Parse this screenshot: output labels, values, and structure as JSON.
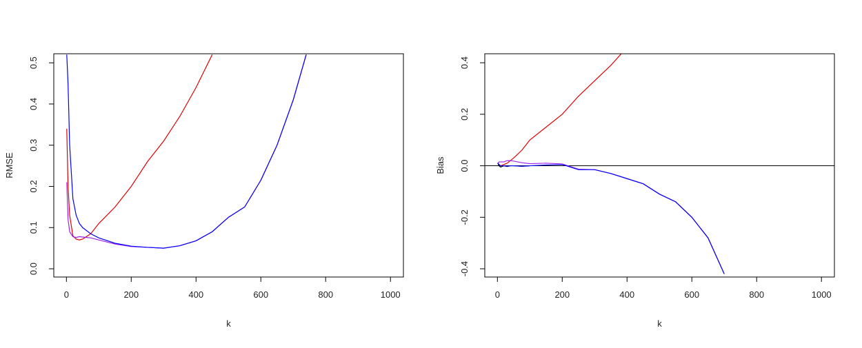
{
  "chart_data": [
    {
      "type": "line",
      "xlabel": "k",
      "ylabel": "RMSE",
      "x": [
        1,
        5,
        10,
        20,
        30,
        40,
        50,
        75,
        100,
        150,
        200,
        250,
        300,
        350,
        400,
        450,
        500,
        550,
        600,
        650,
        700,
        740
      ],
      "xlim": [
        -39,
        1040
      ],
      "xticks": [
        0,
        200,
        400,
        600,
        800,
        1000
      ],
      "ylim": [
        -0.02,
        0.522
      ],
      "yticks": [
        {
          "value": 0,
          "label": "0.0"
        },
        0.1,
        0.2,
        0.3,
        0.4,
        0.5
      ],
      "series": [
        {
          "color": "#e00000",
          "values": [
            0.34,
            0.2,
            0.13,
            0.08,
            0.072,
            0.07,
            0.072,
            0.085,
            0.11,
            0.15,
            0.2,
            0.26,
            0.31,
            0.37,
            0.44,
            0.52,
            null,
            null,
            null,
            null,
            null,
            null
          ]
        },
        {
          "color": "#a020f0",
          "values": [
            0.21,
            0.12,
            0.09,
            0.078,
            0.076,
            0.078,
            0.077,
            0.075,
            0.07,
            0.06,
            0.054,
            0.052,
            0.05,
            0.056,
            0.068,
            0.09,
            0.125,
            0.15,
            0.215,
            0.3,
            0.41,
            0.52
          ]
        },
        {
          "color": "#0000ff",
          "values": [
            0.52,
            0.45,
            0.3,
            0.17,
            0.13,
            0.11,
            0.1,
            0.085,
            0.075,
            0.062,
            0.055,
            0.052,
            0.05,
            0.056,
            0.068,
            0.09,
            0.125,
            0.15,
            0.215,
            0.3,
            0.41,
            0.52
          ]
        }
      ]
    },
    {
      "type": "line",
      "xlabel": "k",
      "ylabel": "Bias",
      "x": [
        1,
        5,
        10,
        20,
        30,
        40,
        50,
        75,
        100,
        150,
        200,
        250,
        300,
        350,
        400,
        450,
        500,
        550,
        600,
        650,
        700
      ],
      "xlim": [
        -39,
        1040
      ],
      "xticks": [
        0,
        200,
        400,
        600,
        800,
        1000
      ],
      "ylim": [
        -0.432,
        0.435
      ],
      "yticks": [
        -0.4,
        -0.2,
        {
          "value": 0,
          "label": "0.0"
        },
        0.2,
        0.4
      ],
      "hline": 0,
      "series": [
        {
          "color": "#e00000",
          "values": [
            0.01,
            0.005,
            0.0,
            0.005,
            0.01,
            0.02,
            0.03,
            0.06,
            0.1,
            0.15,
            0.2,
            0.27,
            0.33,
            0.39,
            0.46,
            null,
            null,
            null,
            null,
            null,
            null
          ]
        },
        {
          "color": "#000000",
          "values": [
            0.01,
            0.0,
            -0.005,
            0.0,
            -0.003,
            0.0,
            0.0,
            -0.002,
            0.0,
            null,
            null,
            null,
            null,
            null,
            null,
            null,
            null,
            null,
            null,
            null,
            null
          ]
        },
        {
          "color": "#a020f0",
          "values": [
            0.01,
            0.015,
            0.015,
            0.015,
            0.02,
            0.02,
            0.018,
            0.012,
            0.008,
            0.01,
            0.007,
            -0.013,
            -0.015,
            -0.03,
            -0.05,
            -0.07,
            -0.11,
            -0.14,
            -0.2,
            -0.28,
            -0.42
          ]
        },
        {
          "color": "#0000ff",
          "values": [
            0.01,
            0.005,
            0.0,
            0.0,
            -0.002,
            0.0,
            0.0,
            -0.002,
            0.0,
            0.003,
            0.005,
            -0.015,
            -0.015,
            -0.03,
            -0.05,
            -0.07,
            -0.11,
            -0.14,
            -0.2,
            -0.28,
            -0.42
          ]
        }
      ]
    }
  ]
}
